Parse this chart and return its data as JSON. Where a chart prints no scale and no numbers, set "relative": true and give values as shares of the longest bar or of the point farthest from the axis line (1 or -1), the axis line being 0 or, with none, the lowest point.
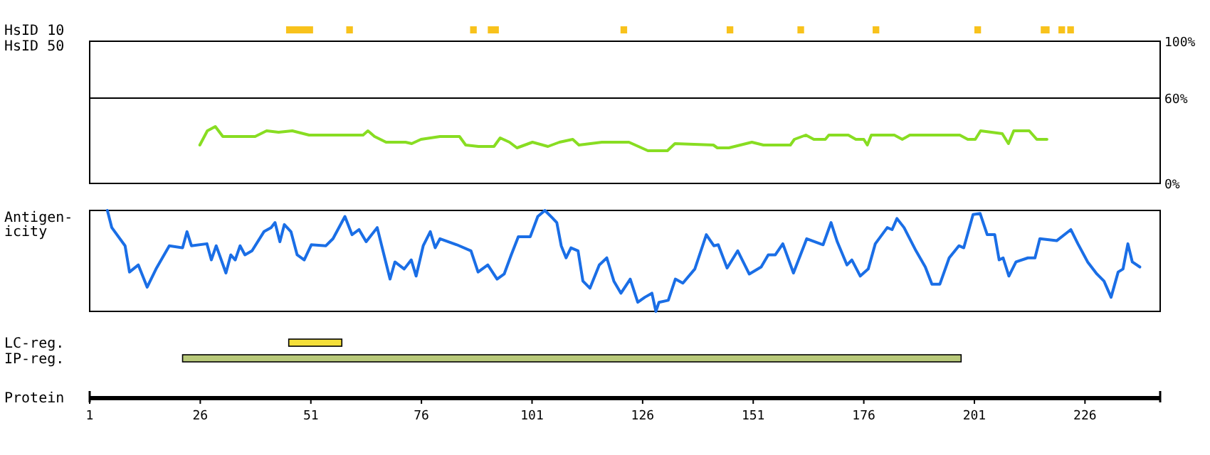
{
  "chart_data": [
    {
      "type": "bar",
      "orientation": "horizontal",
      "categories": [
        "HsID 10",
        "HsID 50",
        null,
        null,
        null,
        null,
        null,
        null,
        null,
        null,
        null,
        null,
        null,
        null,
        null,
        null,
        null,
        null,
        null,
        null,
        "LC-reg.",
        "IP-reg."
      ],
      "xlabel": "Protein",
      "xlim": [
        1,
        243
      ],
      "xticks": [
        1,
        26,
        51,
        76,
        101,
        126,
        151,
        176,
        201,
        226
      ],
      "series": [
        {
          "color": "#f8c21c",
          "base": [
            45.4,
            null,
            null,
            null,
            null,
            null,
            null,
            null,
            null,
            null,
            null,
            null,
            null,
            null,
            null,
            null,
            null,
            null,
            null,
            null,
            null,
            null
          ],
          "values": [
            6.1,
            null,
            null,
            null,
            null,
            null,
            null,
            null,
            null,
            null,
            null,
            null,
            null,
            null,
            null,
            null,
            null,
            null,
            null,
            null,
            null,
            null
          ]
        },
        {
          "color": "#f8c21c",
          "base": [
            59,
            null,
            null,
            null,
            null,
            null,
            null,
            null,
            null,
            null,
            null,
            null,
            null,
            null,
            null,
            null,
            null,
            null,
            null,
            null,
            null,
            null
          ],
          "values": [
            1.5,
            null,
            null,
            null,
            null,
            null,
            null,
            null,
            null,
            null,
            null,
            null,
            null,
            null,
            null,
            null,
            null,
            null,
            null,
            null,
            null,
            null
          ]
        },
        {
          "color": "#f8c21c",
          "base": [
            87,
            null,
            null,
            null,
            null,
            null,
            null,
            null,
            null,
            null,
            null,
            null,
            null,
            null,
            null,
            null,
            null,
            null,
            null,
            null,
            null,
            null
          ],
          "values": [
            1.5,
            null,
            null,
            null,
            null,
            null,
            null,
            null,
            null,
            null,
            null,
            null,
            null,
            null,
            null,
            null,
            null,
            null,
            null,
            null,
            null,
            null
          ]
        },
        {
          "color": "#f8c21c",
          "base": [
            91,
            null,
            null,
            null,
            null,
            null,
            null,
            null,
            null,
            null,
            null,
            null,
            null,
            null,
            null,
            null,
            null,
            null,
            null,
            null,
            null,
            null
          ],
          "values": [
            2.5,
            null,
            null,
            null,
            null,
            null,
            null,
            null,
            null,
            null,
            null,
            null,
            null,
            null,
            null,
            null,
            null,
            null,
            null,
            null,
            null,
            null
          ]
        },
        {
          "color": "#f8c21c",
          "base": [
            121,
            null,
            null,
            null,
            null,
            null,
            null,
            null,
            null,
            null,
            null,
            null,
            null,
            null,
            null,
            null,
            null,
            null,
            null,
            null,
            null,
            null
          ],
          "values": [
            1.5,
            null,
            null,
            null,
            null,
            null,
            null,
            null,
            null,
            null,
            null,
            null,
            null,
            null,
            null,
            null,
            null,
            null,
            null,
            null,
            null,
            null
          ]
        },
        {
          "color": "#f8c21c",
          "base": [
            145,
            null,
            null,
            null,
            null,
            null,
            null,
            null,
            null,
            null,
            null,
            null,
            null,
            null,
            null,
            null,
            null,
            null,
            null,
            null,
            null,
            null
          ],
          "values": [
            1.5,
            null,
            null,
            null,
            null,
            null,
            null,
            null,
            null,
            null,
            null,
            null,
            null,
            null,
            null,
            null,
            null,
            null,
            null,
            null,
            null,
            null
          ]
        },
        {
          "color": "#f8c21c",
          "base": [
            161,
            null,
            null,
            null,
            null,
            null,
            null,
            null,
            null,
            null,
            null,
            null,
            null,
            null,
            null,
            null,
            null,
            null,
            null,
            null,
            null,
            null
          ],
          "values": [
            1.5,
            null,
            null,
            null,
            null,
            null,
            null,
            null,
            null,
            null,
            null,
            null,
            null,
            null,
            null,
            null,
            null,
            null,
            null,
            null,
            null,
            null
          ]
        },
        {
          "color": "#f8c21c",
          "base": [
            178,
            null,
            null,
            null,
            null,
            null,
            null,
            null,
            null,
            null,
            null,
            null,
            null,
            null,
            null,
            null,
            null,
            null,
            null,
            null,
            null,
            null
          ],
          "values": [
            1.5,
            null,
            null,
            null,
            null,
            null,
            null,
            null,
            null,
            null,
            null,
            null,
            null,
            null,
            null,
            null,
            null,
            null,
            null,
            null,
            null,
            null
          ]
        },
        {
          "color": "#f8c21c",
          "base": [
            201,
            null,
            null,
            null,
            null,
            null,
            null,
            null,
            null,
            null,
            null,
            null,
            null,
            null,
            null,
            null,
            null,
            null,
            null,
            null,
            null,
            null
          ],
          "values": [
            1.5,
            null,
            null,
            null,
            null,
            null,
            null,
            null,
            null,
            null,
            null,
            null,
            null,
            null,
            null,
            null,
            null,
            null,
            null,
            null,
            null,
            null
          ]
        },
        {
          "color": "#f8c21c",
          "base": [
            216,
            null,
            null,
            null,
            null,
            null,
            null,
            null,
            null,
            null,
            null,
            null,
            null,
            null,
            null,
            null,
            null,
            null,
            null,
            null,
            null,
            null
          ],
          "values": [
            2,
            null,
            null,
            null,
            null,
            null,
            null,
            null,
            null,
            null,
            null,
            null,
            null,
            null,
            null,
            null,
            null,
            null,
            null,
            null,
            null,
            null
          ]
        },
        {
          "color": "#f8c21c",
          "base": [
            220,
            null,
            null,
            null,
            null,
            null,
            null,
            null,
            null,
            null,
            null,
            null,
            null,
            null,
            null,
            null,
            null,
            null,
            null,
            null,
            null,
            null
          ],
          "values": [
            1.5,
            null,
            null,
            null,
            null,
            null,
            null,
            null,
            null,
            null,
            null,
            null,
            null,
            null,
            null,
            null,
            null,
            null,
            null,
            null,
            null,
            null
          ]
        },
        {
          "color": "#f8c21c",
          "base": [
            222,
            null,
            null,
            null,
            null,
            null,
            null,
            null,
            null,
            null,
            null,
            null,
            null,
            null,
            null,
            null,
            null,
            null,
            null,
            null,
            null,
            null
          ],
          "values": [
            1.5,
            null,
            null,
            null,
            null,
            null,
            null,
            null,
            null,
            null,
            null,
            null,
            null,
            null,
            null,
            null,
            null,
            null,
            null,
            null,
            null,
            null
          ]
        },
        {
          "colors": [
            null,
            null,
            null,
            null,
            null,
            null,
            null,
            null,
            null,
            null,
            null,
            null,
            null,
            null,
            null,
            null,
            null,
            null,
            null,
            null,
            "#f5e03a",
            "#b8c97a"
          ],
          "base": [
            null,
            null,
            null,
            null,
            null,
            null,
            null,
            null,
            null,
            null,
            null,
            null,
            null,
            null,
            null,
            null,
            null,
            null,
            null,
            null,
            46,
            22
          ],
          "values": [
            null,
            null,
            null,
            null,
            null,
            null,
            null,
            null,
            null,
            null,
            null,
            null,
            null,
            null,
            null,
            null,
            null,
            null,
            null,
            null,
            12,
            176
          ]
        }
      ]
    },
    {
      "type": "line",
      "color": "#88dd22",
      "xlim": [
        1,
        243
      ],
      "ylim": [
        0,
        100
      ],
      "yticks": [
        {
          "value": 0,
          "label": "0%"
        },
        {
          "value": 60,
          "label": "60%"
        },
        {
          "value": 100,
          "label": "100%"
        }
      ],
      "ref_lines": [
        {
          "axis": "y",
          "value": 60,
          "color": "#000000"
        }
      ],
      "tick_labels": "y",
      "x": [
        25.9,
        27.6,
        29.4,
        31.1,
        38.4,
        41,
        43.7,
        46.8,
        50.6,
        62.8,
        63.9,
        65.4,
        68,
        72.4,
        73.8,
        75.9,
        80.2,
        84.6,
        86,
        88.9,
        92.4,
        93.8,
        95.9,
        97.6,
        101.1,
        104.6,
        107.2,
        110.2,
        111.6,
        116.8,
        122.9,
        127.2,
        131.6,
        133.3,
        142,
        142.9,
        145.5,
        150.7,
        153.3,
        159.4,
        160.3,
        162.9,
        164.7,
        167.3,
        168.1,
        172.5,
        174.2,
        176,
        176.8,
        177.7,
        182.9,
        184.7,
        186.4,
        197.7,
        199.5,
        201.2,
        202.4,
        207.3,
        208.7,
        209.9,
        213.4,
        215.1,
        217.4
      ],
      "values": [
        27,
        37,
        40,
        33,
        33,
        37,
        36,
        37,
        34,
        34,
        37,
        33,
        29,
        29,
        28,
        31,
        33,
        33,
        27,
        26,
        26,
        32,
        29,
        25,
        29,
        26,
        29,
        31,
        27,
        29,
        29,
        23,
        23,
        28,
        27,
        25,
        25,
        29,
        27,
        27,
        31,
        34,
        31,
        31,
        34,
        34,
        31,
        31,
        27,
        34,
        34,
        31,
        34,
        34,
        31,
        31,
        37,
        35,
        28,
        37,
        37,
        31,
        31
      ]
    },
    {
      "type": "line",
      "ylabel": "Antigen-\nicity",
      "relative": true,
      "color": "#1a6ee6",
      "xlim": [
        1,
        243
      ],
      "tick_labels": false,
      "x": [
        5,
        6,
        9,
        10,
        12,
        14,
        16,
        19,
        22,
        23,
        24,
        27.5,
        28.5,
        29.6,
        31.8,
        32.9,
        33.9,
        35,
        36.1,
        37.7,
        40.4,
        42,
        42.9,
        44,
        45,
        46.5,
        47.9,
        49.5,
        51.1,
        54.4,
        56,
        58.7,
        60.3,
        61.9,
        63.5,
        66,
        67.3,
        68.9,
        70,
        72.1,
        73.7,
        74.8,
        76.4,
        78,
        79.1,
        80.2,
        84,
        87.2,
        88.8,
        91,
        93.1,
        94.7,
        96.3,
        97.9,
        100.6,
        102.3,
        103.9,
        105.5,
        106.6,
        107.6,
        108.7,
        109.8,
        111.4,
        112.5,
        114.1,
        116.2,
        117.9,
        119.5,
        121.1,
        123.2,
        124.9,
        126.5,
        128.1,
        129,
        129.7,
        131.8,
        133.4,
        135.1,
        137.8,
        140.4,
        142.1,
        143.1,
        145.1,
        147.5,
        150.1,
        152.8,
        154.4,
        156,
        157.7,
        160.1,
        163.1,
        166.8,
        168.6,
        170,
        172.2,
        173.3,
        175.2,
        177,
        178.6,
        181.3,
        182.4,
        183.5,
        185.1,
        187.8,
        189.9,
        191.4,
        193.2,
        195.3,
        197.5,
        198.6,
        200.7,
        202.3,
        203.9,
        205.6,
        206.6,
        207.5,
        208.8,
        210.4,
        213.1,
        214.7,
        215.8,
        219.6,
        222.8,
        224.4,
        226.6,
        228.7,
        230.3,
        231.9,
        233.5,
        234.6,
        235.7,
        236.7,
        238.4
      ],
      "values": [
        1,
        0.83,
        0.65,
        0.39,
        0.46,
        0.24,
        0.42,
        0.65,
        0.63,
        0.79,
        0.65,
        0.67,
        0.51,
        0.65,
        0.38,
        0.56,
        0.51,
        0.65,
        0.56,
        0.6,
        0.79,
        0.83,
        0.88,
        0.69,
        0.86,
        0.79,
        0.56,
        0.51,
        0.66,
        0.65,
        0.72,
        0.94,
        0.76,
        0.81,
        0.69,
        0.83,
        0.6,
        0.32,
        0.49,
        0.42,
        0.51,
        0.35,
        0.65,
        0.79,
        0.63,
        0.72,
        0.66,
        0.6,
        0.39,
        0.46,
        0.32,
        0.37,
        0.56,
        0.74,
        0.74,
        0.94,
        1,
        0.93,
        0.88,
        0.65,
        0.53,
        0.63,
        0.6,
        0.3,
        0.23,
        0.46,
        0.53,
        0.3,
        0.18,
        0.32,
        0.09,
        0.14,
        0.18,
        0,
        0.09,
        0.11,
        0.32,
        0.28,
        0.42,
        0.76,
        0.65,
        0.66,
        0.43,
        0.6,
        0.37,
        0.44,
        0.56,
        0.56,
        0.67,
        0.38,
        0.72,
        0.66,
        0.88,
        0.69,
        0.46,
        0.51,
        0.35,
        0.42,
        0.67,
        0.83,
        0.81,
        0.92,
        0.83,
        0.6,
        0.44,
        0.27,
        0.27,
        0.53,
        0.65,
        0.63,
        0.96,
        0.97,
        0.76,
        0.76,
        0.51,
        0.53,
        0.35,
        0.49,
        0.53,
        0.53,
        0.72,
        0.7,
        0.81,
        0.67,
        0.49,
        0.37,
        0.3,
        0.14,
        0.39,
        0.42,
        0.67,
        0.49,
        0.44
      ]
    }
  ]
}
